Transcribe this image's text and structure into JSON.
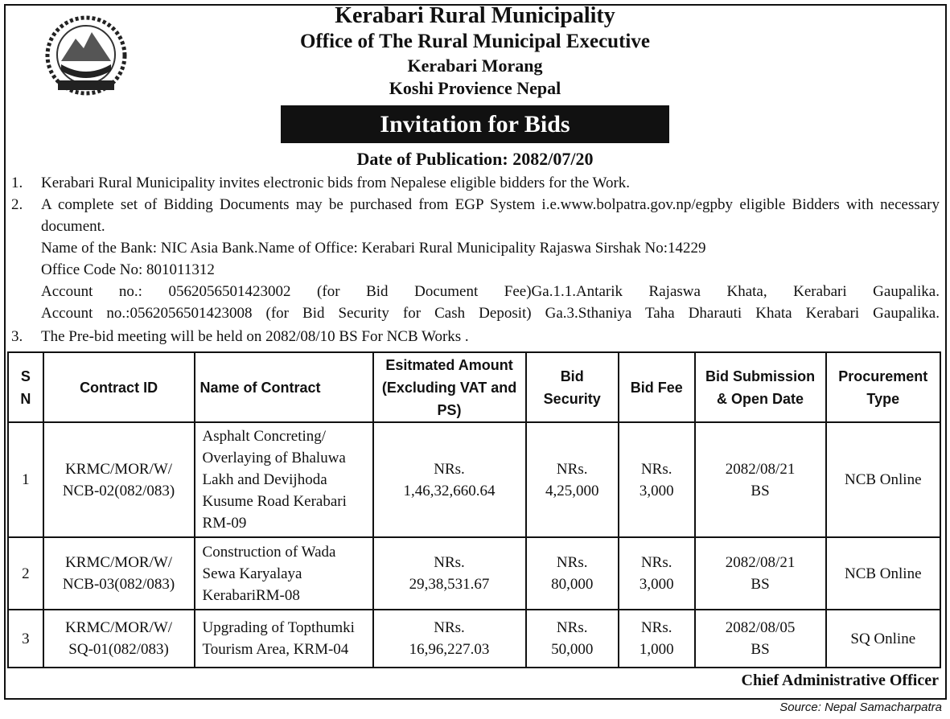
{
  "header": {
    "title": "Kerabari Rural Municipality",
    "subtitle": "Office of The Rural Municipal Executive",
    "location": "Kerabari Morang",
    "province": "Koshi Provience Nepal"
  },
  "notice_title": "Invitation for Bids",
  "publication_date": "Date of  Publication: 2082/07/20",
  "items": [
    {
      "number": "1.",
      "text": "Kerabari Rural Municipality invites electronic bids from Nepalese eligible bidders for the Work."
    },
    {
      "number": "2.",
      "text": "A complete set of  Bidding Documents may be purchased from EGP System i.e.www.bolpatra.gov.np/egpby eligible Bidders with necessary document.",
      "details": [
        "Name of the Bank: NIC Asia Bank.Name of Office: Kerabari Rural Municipality Rajaswa Sirshak No:14229",
        "Office Code No: 801011312",
        "Account no.: 0562056501423002 (for Bid Document Fee)Ga.1.1.Antarik Rajaswa Khata, Kerabari Gaupalika.",
        "Account no.:0562056501423008 (for Bid Security for Cash Deposit) Ga.3.Sthaniya Taha Dharauti Khata Kerabari Gaupalika."
      ]
    },
    {
      "number": "3.",
      "text": "The Pre-bid meeting will be held on 2082/08/10 BS For NCB Works ."
    }
  ],
  "table": {
    "headers": [
      "S N",
      "Contract ID",
      "Name of Contract",
      "Esitmated Amount (Excluding VAT and PS)",
      "Bid Security",
      "Bid Fee",
      "Bid Submission & Open Date",
      "Procurement Type"
    ],
    "rows": [
      [
        "1",
        "KRMC/MOR/W/\nNCB-02(082/083)",
        "Asphalt Concreting/ Overlaying of Bhaluwa Lakh and Devijhoda Kusume Road Kerabari RM-09",
        "NRs.\n1,46,32,660.64",
        "NRs.\n4,25,000",
        "NRs.\n3,000",
        "2082/08/21\nBS",
        "NCB Online"
      ],
      [
        "2",
        "KRMC/MOR/W/\nNCB-03(082/083)",
        "Construction of Wada Sewa Karyalaya KerabariRM-08",
        "NRs.\n29,38,531.67",
        "NRs.\n80,000",
        "NRs.\n3,000",
        "2082/08/21\nBS",
        "NCB  Online"
      ],
      [
        "3",
        "KRMC/MOR/W/\nSQ-01(082/083)",
        "Upgrading of Topthumki Tourism Area, KRM-04",
        "NRs.\n16,96,227.03",
        "NRs.\n50,000",
        "NRs.\n1,000",
        "2082/08/05\nBS",
        "SQ Online"
      ]
    ]
  },
  "signature": "Chief Administrative Officer",
  "source": "Source: Nepal Samacharpatra"
}
